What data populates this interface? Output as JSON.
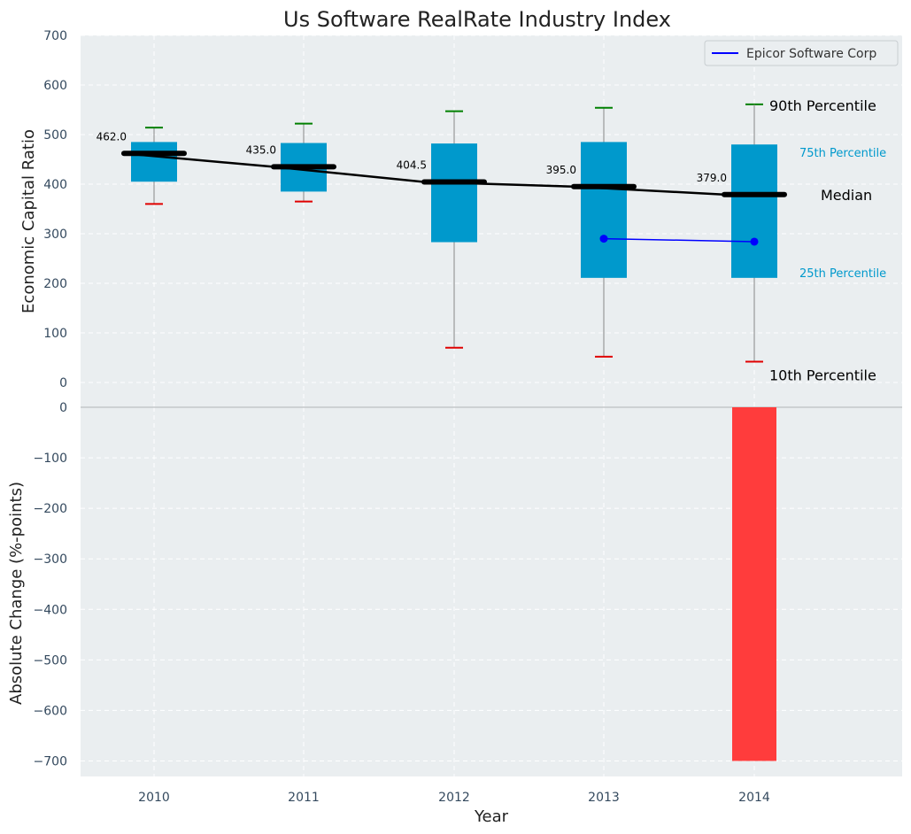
{
  "chart_data": [
    {
      "type": "box",
      "title": "Us Software RealRate Industry Index",
      "ylabel": "Economic Capital Ratio",
      "ylim": [
        0,
        700
      ],
      "yticks": [
        0,
        100,
        200,
        300,
        400,
        500,
        600,
        700
      ],
      "categories": [
        "2010",
        "2011",
        "2012",
        "2013",
        "2014"
      ],
      "percentiles": {
        "p10": [
          360,
          365,
          70,
          52,
          42
        ],
        "p25": [
          405,
          385,
          283,
          211,
          211
        ],
        "median": [
          462.0,
          435.0,
          404.5,
          395.0,
          379.0
        ],
        "p75": [
          485,
          483,
          482,
          485,
          480
        ],
        "p90": [
          514,
          522,
          547,
          554,
          561
        ]
      },
      "median_labels": [
        "462.0",
        "435.0",
        "404.5",
        "395.0",
        "379.0"
      ],
      "series": [
        {
          "name": "Epicor Software Corp",
          "x": [
            "2013",
            "2014"
          ],
          "values": [
            290,
            284
          ],
          "color": "#0000ff"
        }
      ],
      "annotations": {
        "p90": "90th Percentile",
        "p75": "75th Percentile",
        "median": "Median",
        "p25": "25th Percentile",
        "p10": "10th Percentile"
      },
      "legend": "top-right",
      "grid": true,
      "colors": {
        "box": "#0099cc",
        "median": "#000000",
        "p90_cap": "#008000",
        "p10_cap": "#e00000",
        "background": "#eaeef0"
      }
    },
    {
      "type": "bar",
      "ylabel": "Absolute Change (%-points)",
      "xlabel": "Year",
      "ylim": [
        -735,
        0
      ],
      "yticks": [
        0,
        -100,
        -200,
        -300,
        -400,
        -500,
        -600,
        -700
      ],
      "ytick_labels": [
        "0",
        "−100",
        "−200",
        "−300",
        "−400",
        "−500",
        "−600",
        "−700"
      ],
      "categories": [
        "2010",
        "2011",
        "2012",
        "2013",
        "2014"
      ],
      "values": [
        0,
        0,
        0,
        0,
        -700
      ],
      "grid": true,
      "colors": {
        "bar": "#ff3c3c"
      }
    }
  ]
}
